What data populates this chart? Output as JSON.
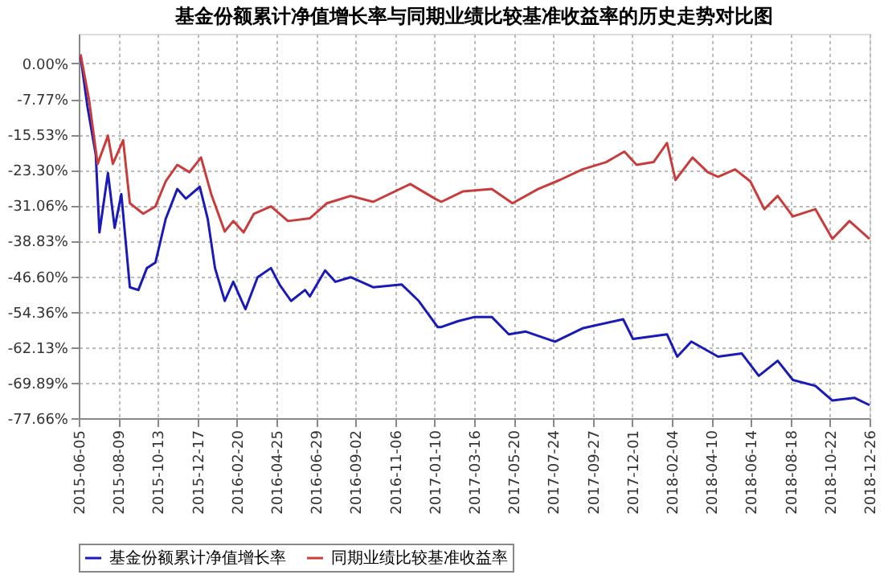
{
  "chart_data": {
    "type": "line",
    "title": "基金份额累计净值增长率与同期业绩比较基准收益率的历史走势对比图",
    "series": [
      {
        "name": "基金份额累计净值增长率",
        "color": "#1a1ab8",
        "x": [
          "2015-06-08",
          "2015-06-19",
          "2015-07-03",
          "2015-07-09",
          "2015-07-23",
          "2015-08-03",
          "2015-08-14",
          "2015-08-28",
          "2015-09-11",
          "2015-09-25",
          "2015-10-09",
          "2015-10-26",
          "2015-11-14",
          "2015-11-28",
          "2015-12-21",
          "2016-01-03",
          "2016-01-15",
          "2016-01-31",
          "2016-02-14",
          "2016-03-05",
          "2016-03-25",
          "2016-04-16",
          "2016-04-30",
          "2016-05-19",
          "2016-06-11",
          "2016-06-19",
          "2016-07-14",
          "2016-07-31",
          "2016-08-25",
          "2016-10-01",
          "2016-11-17",
          "2016-12-15",
          "2017-01-15",
          "2017-01-21",
          "2017-02-18",
          "2017-03-17",
          "2017-04-14",
          "2017-05-12",
          "2017-06-09",
          "2017-07-27",
          "2017-09-10",
          "2017-11-16",
          "2017-12-02",
          "2018-01-27",
          "2018-02-13",
          "2018-03-08",
          "2018-04-21",
          "2018-05-30",
          "2018-06-27",
          "2018-07-28",
          "2018-08-22",
          "2018-09-28",
          "2018-10-26",
          "2018-12-01",
          "2018-12-26"
        ],
        "values": [
          1.5,
          -9.2,
          -20,
          -37,
          -24,
          -36,
          -28.6,
          -49,
          -49.6,
          -44.8,
          -43.6,
          -34,
          -27.5,
          -29.6,
          -27,
          -34,
          -44.8,
          -52,
          -47.8,
          -53.8,
          -46.8,
          -44.8,
          -48.4,
          -52,
          -49.6,
          -51,
          -45.3,
          -47.8,
          -46.8,
          -49,
          -48.4,
          -52,
          -57.7,
          -57.7,
          -56.4,
          -55.5,
          -55.5,
          -59.3,
          -58.7,
          -60.9,
          -58,
          -56,
          -60.3,
          -59.3,
          -64.2,
          -60.9,
          -64.2,
          -63.5,
          -68.4,
          -65.1,
          -69.3,
          -70.6,
          -73.8,
          -73.2,
          -74.8
        ]
      },
      {
        "name": "同期业绩比较基准收益率",
        "color": "#c83c3c",
        "x": [
          "2015-06-08",
          "2015-06-22",
          "2015-07-06",
          "2015-07-23",
          "2015-07-31",
          "2015-08-17",
          "2015-08-28",
          "2015-09-19",
          "2015-10-09",
          "2015-10-26",
          "2015-11-14",
          "2015-12-04",
          "2015-12-23",
          "2016-01-09",
          "2016-01-31",
          "2016-02-14",
          "2016-03-02",
          "2016-03-19",
          "2016-04-16",
          "2016-05-14",
          "2016-06-19",
          "2016-07-17",
          "2016-08-25",
          "2016-10-01",
          "2016-12-01",
          "2017-01-12",
          "2017-01-21",
          "2017-02-26",
          "2017-04-14",
          "2017-05-18",
          "2017-06-29",
          "2017-08-04",
          "2017-09-10",
          "2017-10-19",
          "2017-11-18",
          "2017-12-08",
          "2018-01-05",
          "2018-01-27",
          "2018-02-10",
          "2018-03-10",
          "2018-04-04",
          "2018-04-21",
          "2018-05-19",
          "2018-06-13",
          "2018-07-06",
          "2018-07-28",
          "2018-08-22",
          "2018-09-28",
          "2018-10-26",
          "2018-11-23",
          "2018-12-26"
        ],
        "values": [
          2,
          -8,
          -22,
          -15.8,
          -22,
          -16.8,
          -30.6,
          -32.9,
          -31.3,
          -25.8,
          -22.2,
          -23.8,
          -20.6,
          -28.7,
          -36.8,
          -34.5,
          -37,
          -32.9,
          -31.3,
          -34.5,
          -33.9,
          -30.6,
          -29,
          -30.3,
          -26.4,
          -29.7,
          -30.3,
          -28,
          -27.5,
          -30.6,
          -27.5,
          -25.5,
          -23.2,
          -21.6,
          -19.3,
          -22.2,
          -21.6,
          -17.4,
          -25.5,
          -20.6,
          -23.8,
          -24.8,
          -23.2,
          -25.8,
          -31.9,
          -29,
          -33.5,
          -31.9,
          -38.4,
          -34.5,
          -38.4
        ]
      }
    ],
    "xlim": [
      "2015-06-05",
      "2018-12-26"
    ],
    "xticks": [
      "2015-06-05",
      "2015-08-09",
      "2015-10-13",
      "2015-12-17",
      "2016-02-20",
      "2016-04-25",
      "2016-06-29",
      "2016-09-02",
      "2016-11-06",
      "2017-01-10",
      "2017-03-16",
      "2017-05-20",
      "2017-07-24",
      "2017-09-27",
      "2017-12-01",
      "2018-02-04",
      "2018-04-10",
      "2018-06-14",
      "2018-08-18",
      "2018-10-22",
      "2018-12-26"
    ],
    "ylim": [
      -77.66,
      6.5
    ],
    "yticks": [
      {
        "value": 0,
        "label": "0.00%"
      },
      {
        "value": -7.77,
        "label": "-7.77%"
      },
      {
        "value": -15.53,
        "label": "-15.53%"
      },
      {
        "value": -23.3,
        "label": "-23.30%"
      },
      {
        "value": -31.06,
        "label": "-31.06%"
      },
      {
        "value": -38.83,
        "label": "-38.83%"
      },
      {
        "value": -46.6,
        "label": "-46.60%"
      },
      {
        "value": -54.36,
        "label": "-54.36%"
      },
      {
        "value": -62.13,
        "label": "-62.13%"
      },
      {
        "value": -69.89,
        "label": "-69.89%"
      },
      {
        "value": -77.66,
        "label": "-77.66%"
      }
    ],
    "grid": true,
    "legend": "bottom",
    "line_style": "solid",
    "marker": "none"
  }
}
